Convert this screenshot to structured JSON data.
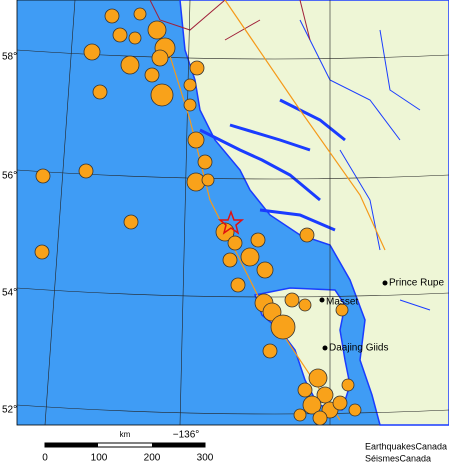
{
  "map": {
    "lat_labels": [
      "58°",
      "56°",
      "54°",
      "52°"
    ],
    "lon_label": "−136°",
    "places": [
      "Prince Rupe",
      "Masset",
      "Daajing Giids"
    ],
    "scale": {
      "unit": "km",
      "ticks": [
        "0",
        "100",
        "200",
        "300"
      ]
    },
    "credits": [
      "EarthquakesCanada",
      "SéismesCanada"
    ]
  }
}
